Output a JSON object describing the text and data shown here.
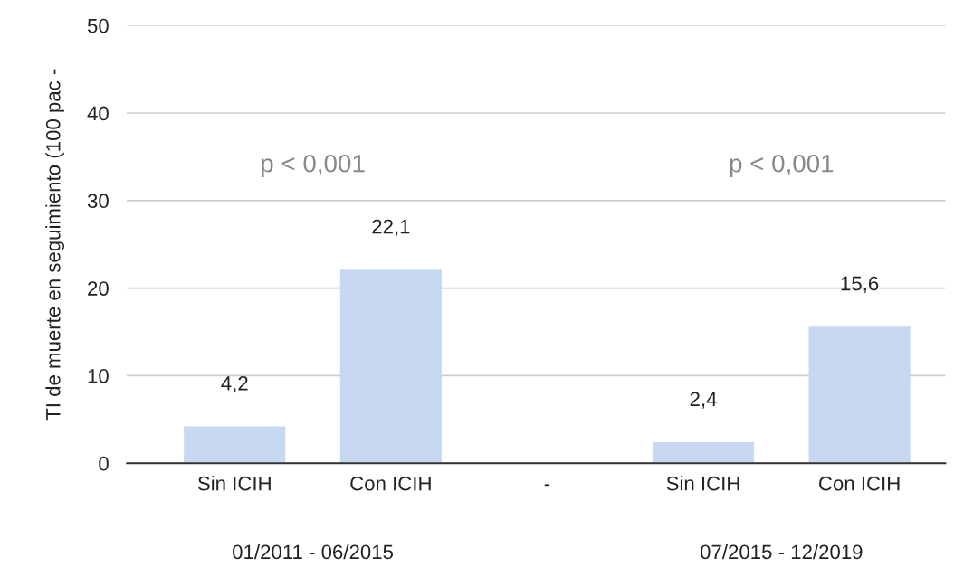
{
  "chart_data": {
    "type": "bar",
    "ylabel": "TI de muerte en seguimiento (100 pac -",
    "categories": [
      "Sin ICIH",
      "Con ICIH",
      "-",
      "Sin ICIH",
      "Con ICIH"
    ],
    "values": [
      4.2,
      22.1,
      null,
      2.4,
      15.6
    ],
    "value_labels": [
      "4,2",
      "22,1",
      null,
      "2,4",
      "15,6"
    ],
    "color": "#c6d9f0",
    "ylim": [
      0,
      50
    ],
    "yticks": [
      0,
      10,
      20,
      30,
      40,
      50
    ],
    "grid": "y",
    "annotations": [
      "p < 0,001",
      "p < 0,001",
      "01/2011 - 06/2015",
      "07/2015 - 12/2019"
    ]
  }
}
